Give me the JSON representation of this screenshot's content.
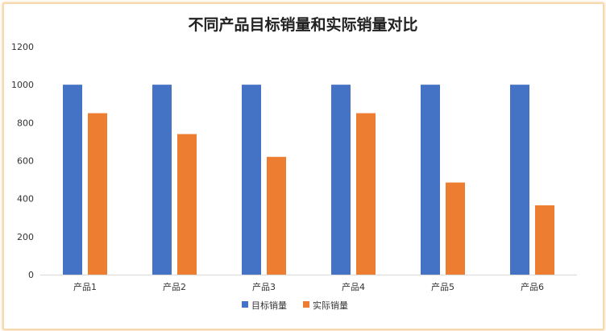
{
  "chart_data": {
    "type": "bar",
    "title": "不同产品目标销量和实际销量对比",
    "categories": [
      "产品1",
      "产品2",
      "产品3",
      "产品4",
      "产品5",
      "产品6"
    ],
    "series": [
      {
        "name": "目标销量",
        "values": [
          1000,
          1000,
          1000,
          1000,
          1000,
          1000
        ],
        "color": "#4472c4"
      },
      {
        "name": "实际销量",
        "values": [
          850,
          740,
          620,
          850,
          485,
          365
        ],
        "color": "#ed7d31"
      }
    ],
    "y_ticks": [
      "0",
      "200",
      "400",
      "600",
      "800",
      "1000",
      "1200"
    ],
    "ylim": [
      0,
      1200
    ],
    "grid": false,
    "legend_position": "bottom"
  },
  "colors": {
    "frame_border": "#f7d9b0",
    "axis_line": "#d9d9d9"
  }
}
